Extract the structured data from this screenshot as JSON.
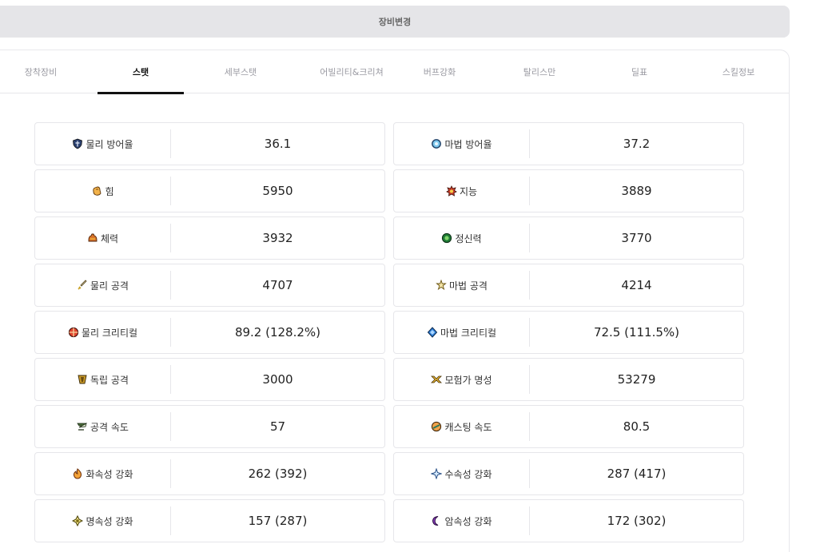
{
  "header": {
    "title": "장비변경"
  },
  "tabs": [
    {
      "label": "장착장비"
    },
    {
      "label": "스탯"
    },
    {
      "label": "세부스탯"
    },
    {
      "label": "어빌리티&크리쳐"
    },
    {
      "label": "버프강화"
    },
    {
      "label": "탈리스만"
    },
    {
      "label": "딜표"
    },
    {
      "label": "스킬정보"
    }
  ],
  "stats": [
    {
      "label": "물리 방어율",
      "value": "36.1",
      "icon": "shield-icon"
    },
    {
      "label": "마법 방어율",
      "value": "37.2",
      "icon": "magic-shield-icon"
    },
    {
      "label": "힘",
      "value": "5950",
      "icon": "fist-icon"
    },
    {
      "label": "지능",
      "value": "3889",
      "icon": "brain-icon"
    },
    {
      "label": "체력",
      "value": "3932",
      "icon": "body-icon"
    },
    {
      "label": "정신력",
      "value": "3770",
      "icon": "spirit-icon"
    },
    {
      "label": "물리 공격",
      "value": "4707",
      "icon": "sword-icon"
    },
    {
      "label": "마법 공격",
      "value": "4214",
      "icon": "magic-star-icon"
    },
    {
      "label": "물리 크리티컬",
      "value": "89.2 (128.2%)",
      "icon": "crit-target-icon"
    },
    {
      "label": "마법 크리티컬",
      "value": "72.5 (111.5%)",
      "icon": "magic-crit-icon"
    },
    {
      "label": "독립 공격",
      "value": "3000",
      "icon": "independent-attack-icon"
    },
    {
      "label": "모험가 명성",
      "value": "53279",
      "icon": "fame-icon"
    },
    {
      "label": "공격 속도",
      "value": "57",
      "icon": "attack-speed-icon"
    },
    {
      "label": "캐스팅 속도",
      "value": "80.5",
      "icon": "casting-speed-icon"
    },
    {
      "label": "화속성 강화",
      "value": "262 (392)",
      "icon": "fire-icon"
    },
    {
      "label": "수속성 강화",
      "value": "287 (417)",
      "icon": "water-icon"
    },
    {
      "label": "명속성 강화",
      "value": "157 (287)",
      "icon": "light-icon"
    },
    {
      "label": "암속성 강화",
      "value": "172 (302)",
      "icon": "dark-moon-icon"
    }
  ]
}
